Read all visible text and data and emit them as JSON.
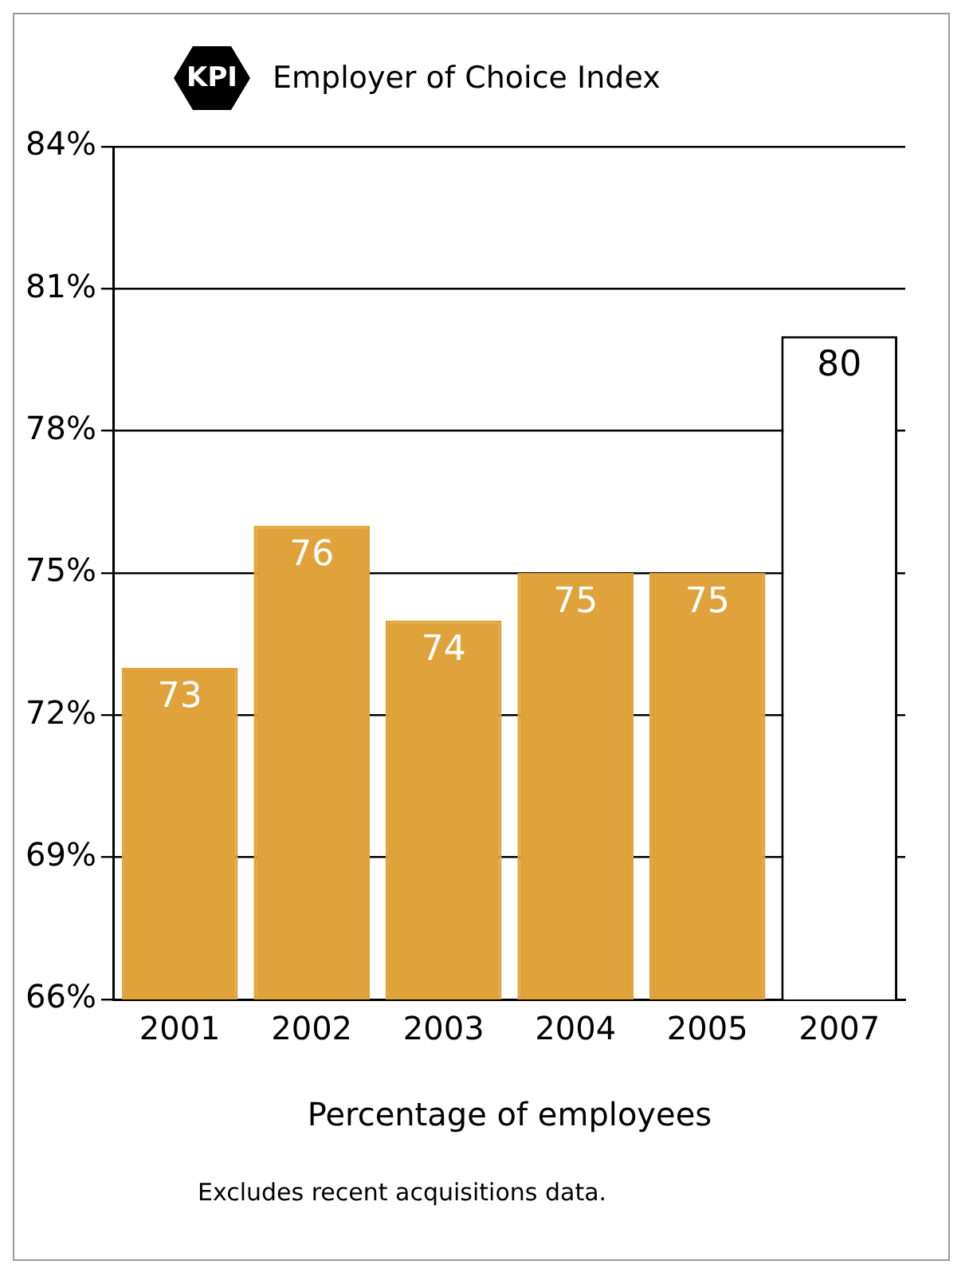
{
  "chart_data": {
    "type": "bar",
    "title": "Employer of Choice Index",
    "xlabel": "Percentage of employees",
    "annotations": [
      "KPI",
      "Excludes recent acquisitions data."
    ],
    "categories": [
      "2001",
      "2002",
      "2003",
      "2004",
      "2005",
      "2007"
    ],
    "values": [
      73,
      76,
      74,
      75,
      75,
      80
    ],
    "colors": [
      "#e0a23a",
      "#e0a23a",
      "#e0a23a",
      "#e0a23a",
      "#e0a23a",
      "#ffffff"
    ],
    "data_labels": true,
    "grid": "y",
    "legend": false,
    "ylim": [
      66,
      84
    ],
    "yticks": [
      {
        "value": 66,
        "label": "66%"
      },
      {
        "value": 69,
        "label": "69%"
      },
      {
        "value": 72,
        "label": "72%"
      },
      {
        "value": 75,
        "label": "75%"
      },
      {
        "value": 78,
        "label": "78%"
      },
      {
        "value": 81,
        "label": "81%"
      },
      {
        "value": 84,
        "label": "84%"
      }
    ]
  }
}
